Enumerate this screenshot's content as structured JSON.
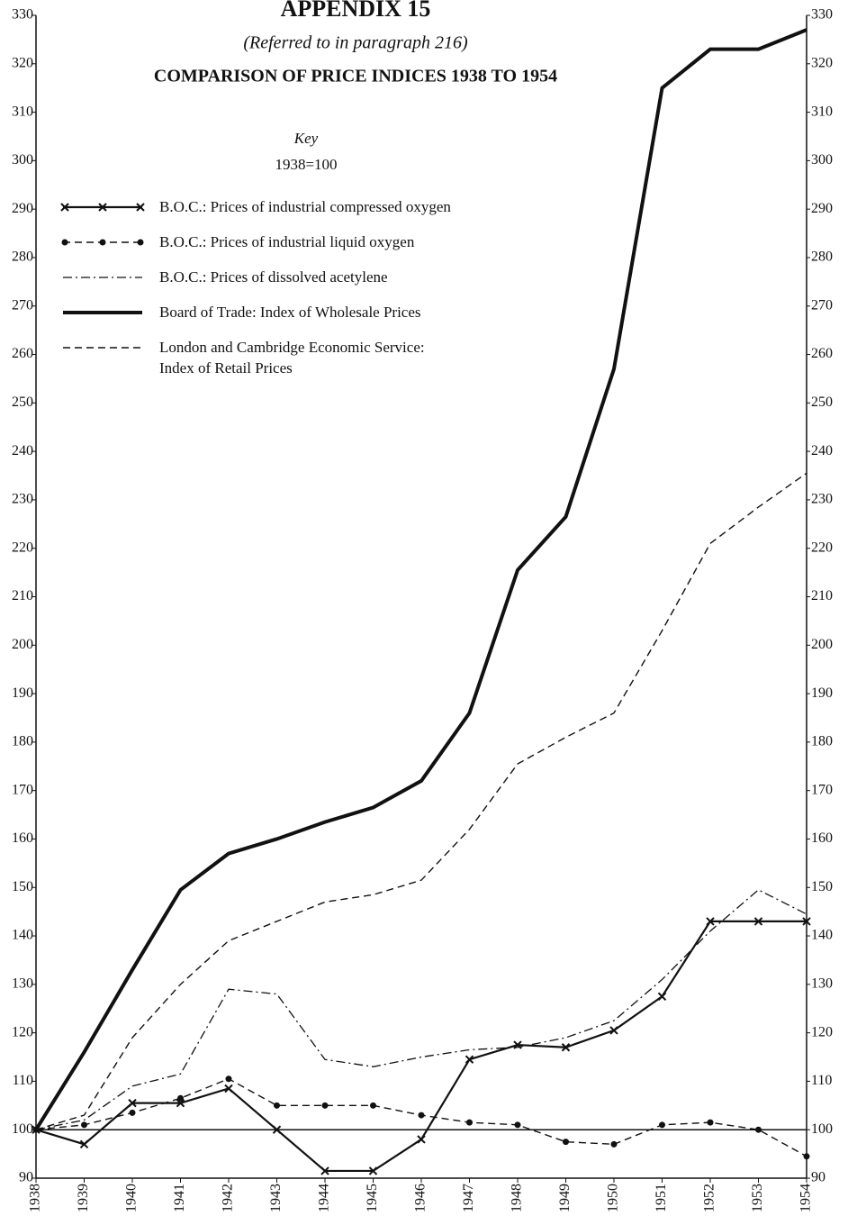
{
  "chart_data": {
    "type": "line",
    "title": "APPENDIX 15",
    "subtitle": "(Referred to in paragraph 216)",
    "heading": "COMPARISON OF PRICE INDICES 1938 TO 1954",
    "key_title": "Key",
    "key_base": "1938=100",
    "reference_line": 100,
    "x": [
      1938,
      1939,
      1940,
      1941,
      1942,
      1943,
      1944,
      1945,
      1946,
      1947,
      1948,
      1949,
      1950,
      1951,
      1952,
      1953,
      1954
    ],
    "xlim": [
      1938,
      1954
    ],
    "xticks": [
      1938,
      1939,
      1940,
      1941,
      1942,
      1943,
      1944,
      1945,
      1946,
      1947,
      1948,
      1949,
      1950,
      1951,
      1952,
      1953,
      1954
    ],
    "ylim": [
      90,
      330
    ],
    "yticks": [
      90,
      100,
      110,
      120,
      130,
      140,
      150,
      160,
      170,
      180,
      190,
      200,
      210,
      220,
      230,
      240,
      250,
      260,
      270,
      280,
      290,
      300,
      310,
      320,
      330
    ],
    "series": [
      {
        "name": "B.O.C.: Prices of industrial compressed oxygen",
        "color": "#111111",
        "dash": "solid",
        "marker": "x",
        "width": 2.2,
        "values": [
          100,
          97,
          105.5,
          105.5,
          108.5,
          100,
          91.5,
          91.5,
          98,
          114.5,
          117.5,
          117,
          120.5,
          127.5,
          143,
          143,
          143
        ]
      },
      {
        "name": "B.O.C.: Prices of industrial liquid oxygen",
        "color": "#111111",
        "dash": "dashed",
        "marker": "o",
        "width": 1.4,
        "values": [
          100,
          101,
          103.5,
          106.5,
          110.5,
          105,
          105,
          105,
          103,
          101.5,
          101,
          97.5,
          97,
          101,
          101.5,
          100,
          94.5
        ]
      },
      {
        "name": "B.O.C.: Prices of dissolved acetylene",
        "color": "#111111",
        "dash": "dashdot",
        "marker": "none",
        "width": 1.3,
        "values": [
          100,
          102,
          109,
          111.5,
          129,
          128,
          114.5,
          113,
          115,
          116.5,
          117,
          119,
          122.5,
          131,
          141,
          149.5,
          144.5
        ]
      },
      {
        "name": "Board of Trade: Index of Wholesale Prices",
        "color": "#111111",
        "dash": "solid",
        "marker": "none",
        "width": 4,
        "values": [
          100,
          116,
          133,
          149.5,
          157,
          160,
          163.5,
          166.5,
          172,
          186,
          215.5,
          226.5,
          257,
          315,
          323,
          323,
          327
        ]
      },
      {
        "name": "London and Cambridge Economic Service:\n Index of Retail Prices",
        "color": "#111111",
        "dash": "dashed",
        "marker": "none",
        "width": 1.4,
        "values": [
          100,
          103,
          119,
          130,
          139,
          143,
          147,
          148.5,
          151.5,
          162,
          175.5,
          181,
          186,
          203,
          221,
          228.5,
          235.5
        ]
      }
    ]
  }
}
